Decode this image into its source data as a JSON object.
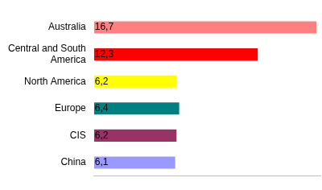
{
  "chart_data": {
    "type": "bar",
    "orientation": "horizontal",
    "categories": [
      "Australia",
      "Central and South America",
      "North America",
      "Europe",
      "CIS",
      "China"
    ],
    "values": [
      16.7,
      12.3,
      6.2,
      6.4,
      6.2,
      6.1
    ],
    "value_labels": [
      "16,7",
      "12,3",
      "6,2",
      "6,4",
      "6,2",
      "6,1"
    ],
    "colors": [
      "#ff8080",
      "#ff0000",
      "#ffff00",
      "#008080",
      "#993366",
      "#9999ff"
    ],
    "xlim": [
      0,
      17
    ],
    "grid": false,
    "data_labels": true,
    "tick_labels": "y"
  }
}
